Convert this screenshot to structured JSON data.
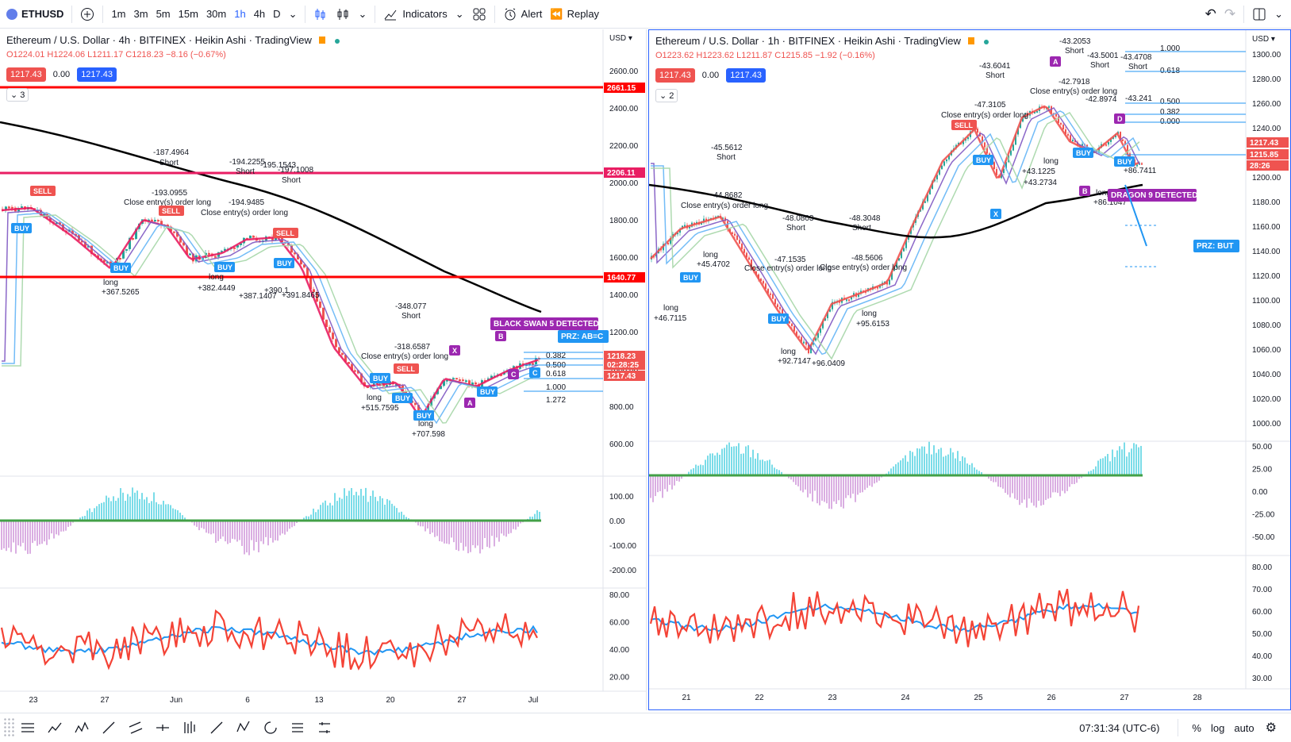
{
  "toolbar": {
    "symbol": "ETHUSD",
    "intervals": [
      "1m",
      "3m",
      "5m",
      "15m",
      "30m",
      "1h",
      "4h",
      "D"
    ],
    "active_interval": "1h",
    "indicators": "Indicators",
    "alert": "Alert",
    "replay": "Replay"
  },
  "left": {
    "title": "Ethereum / U.S. Dollar · 4h · BITFINEX · Heikin Ashi · TradingView",
    "ohlc": "O1224.01 H1224.06 L1211.17 C1218.23 −8.16 (−0.67%)",
    "bid": "1217.43",
    "spread": "0.00",
    "ask": "1217.43",
    "count": "3",
    "currency": "USD",
    "price_ticks": [
      "2600.00",
      "2400.00",
      "2200.00",
      "2000.00",
      "1800.00",
      "1600.00",
      "1400.00",
      "1200.00",
      "1000.00",
      "800.00",
      "600.00"
    ],
    "price_labels": [
      {
        "v": "2661.15",
        "bg": "#ff0000"
      },
      {
        "v": "2206.11",
        "bg": "#e91e63"
      },
      {
        "v": "1640.77",
        "bg": "#ff0000"
      },
      {
        "v": "1218.23",
        "bg": "#ef5350"
      },
      {
        "v": "02:28:25",
        "bg": "#ef5350"
      },
      {
        "v": "1217.43",
        "bg": "#ef5350"
      }
    ],
    "osc_ticks": [
      "100.00",
      "0.00",
      "-100.00",
      "-200.00"
    ],
    "rsi_ticks": [
      "80.00",
      "60.00",
      "40.00",
      "20.00"
    ],
    "time_ticks": [
      "23",
      "27",
      "Jun",
      "6",
      "13",
      "20",
      "27",
      "Jul"
    ],
    "annotations": [
      {
        "t": "-187.4964"
      },
      {
        "t": "Short"
      },
      {
        "t": "-193.0955"
      },
      {
        "t": "Close entry(s) order long"
      },
      {
        "t": "-194.2255"
      },
      {
        "t": "Short"
      },
      {
        "t": "-194.9485"
      },
      {
        "t": "Close entry(s) order long"
      },
      {
        "t": "-195.1543"
      },
      {
        "t": "-197.1008"
      },
      {
        "t": "Short"
      },
      {
        "t": "long"
      },
      {
        "t": "+367.5265"
      },
      {
        "t": "long"
      },
      {
        "t": "+382.4449"
      },
      {
        "t": "+387.1407"
      },
      {
        "t": "+390.1"
      },
      {
        "t": "+391.8465"
      },
      {
        "t": "-348.077"
      },
      {
        "t": "Short"
      },
      {
        "t": "-318.6587"
      },
      {
        "t": "Close entry(s) order long"
      },
      {
        "t": "long"
      },
      {
        "t": "+515.7595"
      },
      {
        "t": "long"
      },
      {
        "t": "+707.598"
      },
      {
        "t": "BLACK SWAN 5 DETECTED"
      },
      {
        "t": "PRZ: AB=C"
      },
      {
        "t": "0.382"
      },
      {
        "t": "0.500"
      },
      {
        "t": "0.618"
      },
      {
        "t": "1.000"
      },
      {
        "t": "1.272"
      }
    ]
  },
  "right": {
    "title": "Ethereum / U.S. Dollar · 1h · BITFINEX · Heikin Ashi · TradingView",
    "ohlc": "O1223.62 H1223.62 L1211.87 C1215.85 −1.92 (−0.16%)",
    "bid": "1217.43",
    "spread": "0.00",
    "ask": "1217.43",
    "count": "2",
    "currency": "USD",
    "price_ticks": [
      "1300.00",
      "1280.00",
      "1260.00",
      "1240.00",
      "1220.00",
      "1200.00",
      "1180.00",
      "1160.00",
      "1140.00",
      "1120.00",
      "1100.00",
      "1080.00",
      "1060.00",
      "1040.00",
      "1020.00",
      "1000.00"
    ],
    "price_labels": [
      {
        "v": "1217.43",
        "bg": "#ef5350"
      },
      {
        "v": "1215.85",
        "bg": "#ef5350"
      },
      {
        "v": "28:26",
        "bg": "#ef5350"
      }
    ],
    "osc_ticks": [
      "50.00",
      "25.00",
      "0.00",
      "-25.00",
      "-50.00"
    ],
    "rsi_ticks": [
      "80.00",
      "70.00",
      "60.00",
      "50.00",
      "40.00",
      "30.00"
    ],
    "time_ticks": [
      "21",
      "22",
      "23",
      "24",
      "25",
      "26",
      "27",
      "28"
    ],
    "annotations": [
      {
        "t": "-45.5612"
      },
      {
        "t": "Short"
      },
      {
        "t": "-44.8682"
      },
      {
        "t": "Close entry(s) order long"
      },
      {
        "t": "-48.0803"
      },
      {
        "t": "Short"
      },
      {
        "t": "-47.1535"
      },
      {
        "t": "Close entry(s) order long"
      },
      {
        "t": "-48.3048"
      },
      {
        "t": "Short"
      },
      {
        "t": "-48.5606"
      },
      {
        "t": "Close entry(s) order long"
      },
      {
        "t": "long"
      },
      {
        "t": "+46.7115"
      },
      {
        "t": "long"
      },
      {
        "t": "+45.4702"
      },
      {
        "t": "long"
      },
      {
        "t": "+92.7147"
      },
      {
        "t": "+96.0409"
      },
      {
        "t": "long"
      },
      {
        "t": "+95.6153"
      },
      {
        "t": "-43.6041"
      },
      {
        "t": "Short"
      },
      {
        "t": "-47.3105"
      },
      {
        "t": "Close entry(s) order long"
      },
      {
        "t": "-43.2053"
      },
      {
        "t": "Short"
      },
      {
        "t": "-42.7918"
      },
      {
        "t": "Close entry(s) order long"
      },
      {
        "t": "-43.5001"
      },
      {
        "t": "Short"
      },
      {
        "t": "-42.8974"
      },
      {
        "t": "-43.4708"
      },
      {
        "t": "Short"
      },
      {
        "t": "-43.241"
      },
      {
        "t": "long"
      },
      {
        "t": "+43.1225"
      },
      {
        "t": "+43.2734"
      },
      {
        "t": "long"
      },
      {
        "t": "+86.1047"
      },
      {
        "t": "+86.7411"
      },
      {
        "t": "DRAGON 9 DETECTED"
      },
      {
        "t": "PRZ: BUT"
      },
      {
        "t": "1.272"
      },
      {
        "t": "1.000"
      },
      {
        "t": "0.618"
      },
      {
        "t": "0.500"
      },
      {
        "t": "0.382"
      },
      {
        "t": "0.000"
      }
    ]
  },
  "status": {
    "time": "07:31:34 (UTC-6)",
    "percent": "%",
    "log": "log",
    "auto": "auto"
  }
}
